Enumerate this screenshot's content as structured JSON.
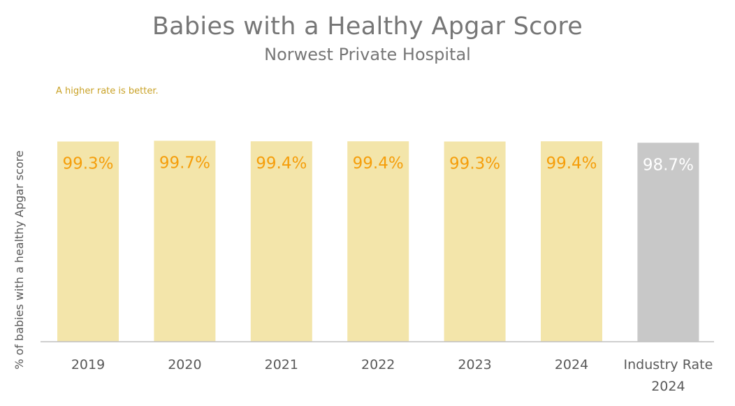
{
  "chart_data": {
    "type": "bar",
    "title": "Babies with a Healthy Apgar Score",
    "subtitle": "Norwest Private Hospital",
    "note": "A higher rate is better.",
    "ylabel": "% of babies with a healthy Apgar score",
    "ylim": [
      0,
      100
    ],
    "grid": false,
    "categories": [
      "2019",
      "2020",
      "2021",
      "2022",
      "2023",
      "2024",
      [
        "Industry Rate",
        "2024"
      ]
    ],
    "values": [
      99.3,
      99.7,
      99.4,
      99.4,
      99.3,
      99.4,
      98.7
    ],
    "data_labels": [
      "99.3%",
      "99.7%",
      "99.4%",
      "99.4%",
      "99.3%",
      "99.4%",
      "98.7%"
    ],
    "colors": {
      "hospital_bar": "#f3e5aa",
      "industry_bar": "#c8c8c8",
      "hospital_label": "#f59e0b",
      "industry_label": "#ffffff",
      "axis": "#bfbfbf",
      "note": "#c9a227",
      "title": "#767676"
    }
  }
}
